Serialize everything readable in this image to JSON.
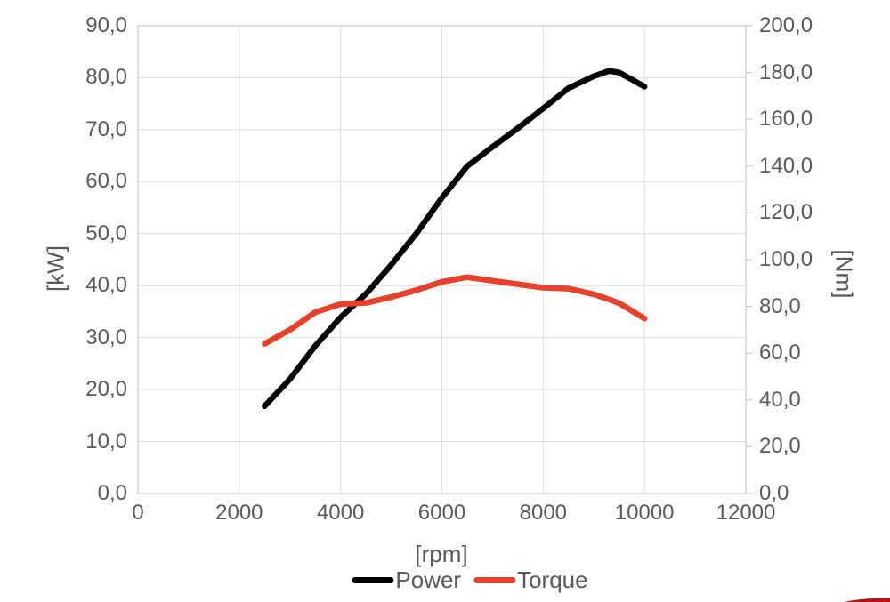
{
  "chart_data": {
    "type": "line",
    "title": "",
    "xlabel": "[rpm]",
    "ylabel_left": "[kW]",
    "ylabel_right": "[Nm]",
    "grid": true,
    "legend_position": "bottom",
    "xlim": [
      0,
      12000
    ],
    "ylim_left": [
      0,
      90
    ],
    "ylim_right": [
      0,
      200
    ],
    "x_ticks": [
      0,
      2000,
      4000,
      6000,
      8000,
      10000,
      12000
    ],
    "x_tick_labels": [
      "0",
      "2000",
      "4000",
      "6000",
      "8000",
      "10000",
      "12000"
    ],
    "y_left_ticks": [
      0,
      10,
      20,
      30,
      40,
      50,
      60,
      70,
      80,
      90
    ],
    "y_left_tick_labels": [
      "0,0",
      "10,0",
      "20,0",
      "30,0",
      "40,0",
      "50,0",
      "60,0",
      "70,0",
      "80,0",
      "90,0"
    ],
    "y_right_ticks": [
      0,
      20,
      40,
      60,
      80,
      100,
      120,
      140,
      160,
      180,
      200
    ],
    "y_right_tick_labels": [
      "0,0",
      "20,0",
      "40,0",
      "60,0",
      "80,0",
      "100,0",
      "120,0",
      "140,0",
      "160,0",
      "180,0",
      "200,0"
    ],
    "x": [
      2500,
      3000,
      3500,
      4000,
      4500,
      5000,
      5500,
      6000,
      6500,
      7000,
      7500,
      8000,
      8500,
      9000,
      9300,
      9500,
      10000
    ],
    "series": [
      {
        "name": "Power",
        "axis": "left",
        "unit": "kW",
        "color": "#000000",
        "values": [
          16.8,
          22.0,
          28.4,
          33.9,
          38.4,
          44.0,
          50.1,
          56.9,
          63.0,
          66.7,
          70.3,
          74.1,
          78.0,
          80.3,
          81.3,
          81.0,
          78.3
        ]
      },
      {
        "name": "Torque",
        "axis": "right",
        "unit": "Nm",
        "color": "#e8402a",
        "values": [
          64.0,
          70.0,
          77.5,
          81.0,
          81.5,
          84.0,
          87.0,
          90.5,
          92.5,
          91.0,
          89.5,
          88.0,
          87.6,
          85.2,
          83.0,
          81.4,
          74.8
        ]
      }
    ],
    "colors": {
      "text": "#595959",
      "gridline": "#dcdcdc",
      "border": "#bfbfbf",
      "background": "#ffffff",
      "corner_decoration": "#b51218"
    }
  }
}
